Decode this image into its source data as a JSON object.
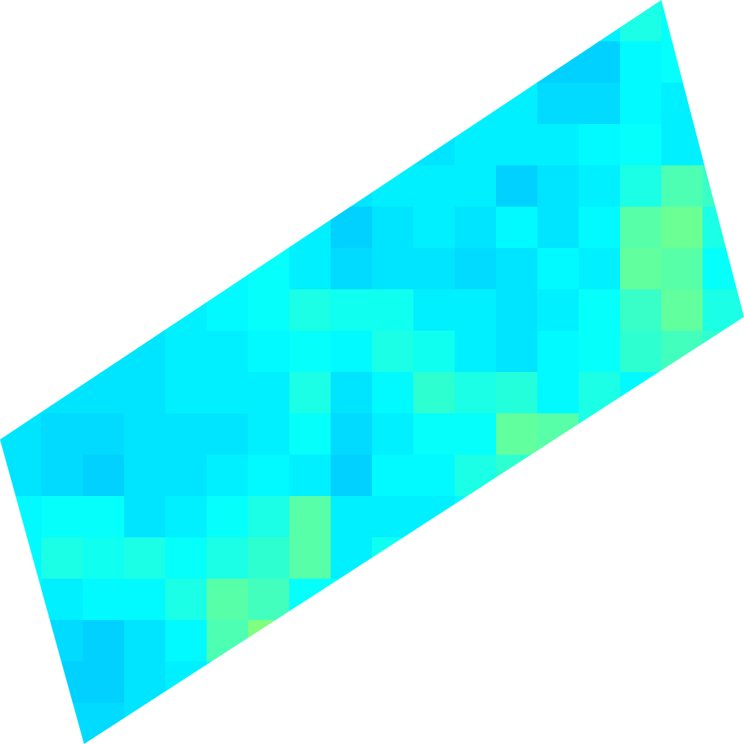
{
  "chart_data": {
    "type": "heatmap",
    "tick_labels": false,
    "zlim": [
      0,
      1
    ],
    "cells": [
      [
        null,
        null,
        null,
        null,
        null,
        null,
        null,
        null,
        null,
        null,
        null,
        null,
        null,
        null,
        0.36,
        0.4,
        0.38,
        null
      ],
      [
        null,
        null,
        null,
        null,
        null,
        null,
        null,
        null,
        null,
        null,
        null,
        null,
        0.35,
        0.33,
        0.33,
        0.37,
        0.38,
        null
      ],
      [
        null,
        null,
        null,
        null,
        null,
        null,
        null,
        null,
        null,
        null,
        null,
        0.36,
        0.36,
        0.34,
        0.34,
        0.37,
        0.36,
        null
      ],
      [
        null,
        null,
        null,
        null,
        null,
        null,
        null,
        null,
        null,
        0.35,
        0.35,
        0.36,
        0.36,
        0.36,
        0.37,
        0.38,
        0.36,
        0.37
      ],
      [
        null,
        null,
        null,
        null,
        null,
        null,
        null,
        null,
        0.35,
        0.36,
        0.36,
        0.36,
        0.33,
        0.35,
        0.36,
        0.4,
        0.45,
        0.43
      ],
      [
        null,
        null,
        null,
        null,
        null,
        null,
        0.36,
        0.36,
        0.33,
        0.35,
        0.36,
        0.35,
        0.37,
        0.35,
        0.37,
        0.46,
        0.48,
        0.4
      ],
      [
        null,
        null,
        null,
        null,
        null,
        0.37,
        0.38,
        0.36,
        0.34,
        0.35,
        0.35,
        0.34,
        0.35,
        0.37,
        0.36,
        0.47,
        0.46,
        0.38
      ],
      [
        null,
        null,
        null,
        0.35,
        0.36,
        0.37,
        0.38,
        0.4,
        0.39,
        0.39,
        0.36,
        0.36,
        0.35,
        0.36,
        0.38,
        0.43,
        0.47,
        0.4
      ],
      [
        null,
        null,
        0.35,
        0.35,
        0.36,
        0.36,
        0.37,
        0.38,
        0.37,
        0.4,
        0.39,
        0.36,
        0.35,
        0.37,
        0.38,
        0.42,
        0.44,
        0.42
      ],
      [
        0.35,
        0.35,
        0.35,
        0.35,
        0.36,
        0.36,
        0.36,
        0.4,
        0.35,
        0.37,
        0.42,
        0.4,
        0.41,
        0.37,
        0.4,
        0.37,
        null,
        null
      ],
      [
        0.35,
        0.34,
        0.34,
        0.35,
        0.35,
        0.35,
        0.36,
        0.38,
        0.34,
        0.36,
        0.38,
        0.38,
        0.47,
        0.46,
        0.4,
        null,
        null,
        null
      ],
      [
        0.35,
        0.34,
        0.33,
        0.35,
        0.35,
        0.36,
        0.37,
        0.36,
        0.33,
        0.37,
        0.37,
        0.4,
        0.42,
        null,
        null,
        null,
        null,
        null
      ],
      [
        0.37,
        0.38,
        0.38,
        0.35,
        0.36,
        0.38,
        0.4,
        0.46,
        0.36,
        0.36,
        0.36,
        0.37,
        null,
        null,
        null,
        null,
        null,
        null
      ],
      [
        0.37,
        0.4,
        0.39,
        0.4,
        0.38,
        0.4,
        0.42,
        0.46,
        0.36,
        0.39,
        null,
        null,
        null,
        null,
        null,
        null,
        null,
        null
      ],
      [
        0.37,
        0.36,
        0.37,
        0.37,
        0.4,
        0.46,
        0.44,
        0.38,
        0.38,
        null,
        null,
        null,
        null,
        null,
        null,
        null,
        null,
        null
      ],
      [
        null,
        0.34,
        0.33,
        0.35,
        0.37,
        0.45,
        0.5,
        null,
        null,
        null,
        null,
        null,
        null,
        null,
        null,
        null,
        null,
        null
      ],
      [
        null,
        0.33,
        0.33,
        0.35,
        0.36,
        0.38,
        null,
        null,
        null,
        null,
        null,
        null,
        null,
        null,
        null,
        null,
        null,
        null
      ],
      [
        null,
        0.34,
        0.34,
        0.35,
        null,
        null,
        null,
        null,
        null,
        null,
        null,
        null,
        null,
        null,
        null,
        null,
        null,
        null
      ]
    ]
  }
}
